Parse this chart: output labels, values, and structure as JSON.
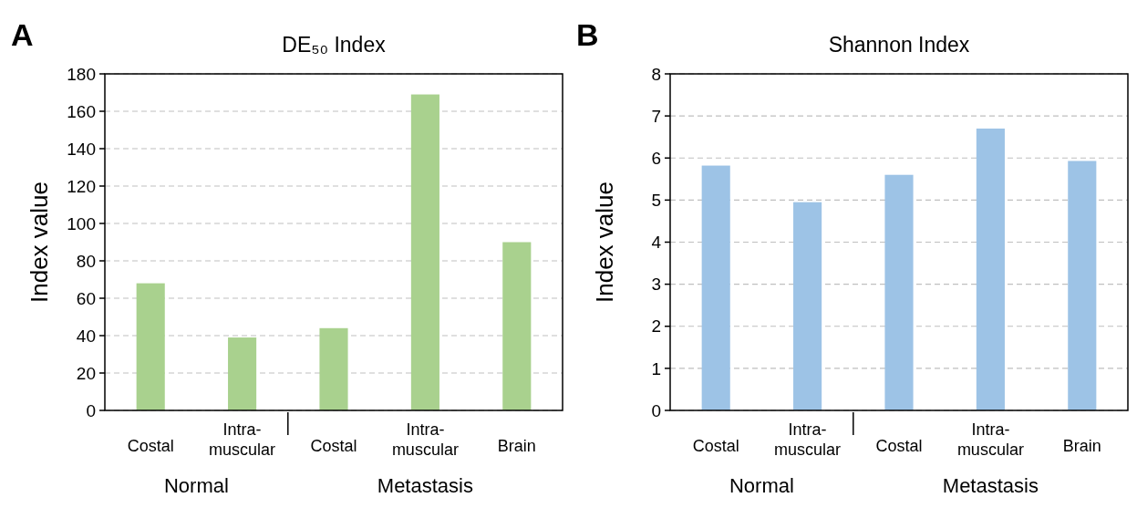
{
  "chart_data": [
    {
      "type": "bar",
      "title": "DE₅₀ Index",
      "ylabel": "Index value",
      "categories": [
        "Costal",
        "Intra-muscular",
        "Costal",
        "Intra-muscular",
        "Brain"
      ],
      "series": [
        {
          "color": "#a9d18e",
          "values": [
            68,
            39,
            44,
            169,
            90
          ]
        }
      ],
      "ylim": [
        0,
        180
      ],
      "yticks": [
        0,
        20,
        40,
        60,
        80,
        100,
        120,
        140,
        160,
        180
      ],
      "grid": "y",
      "annotations": [
        "A",
        "Normal",
        "Metastasis"
      ]
    },
    {
      "type": "bar",
      "title": "Shannon Index",
      "ylabel": "Index value",
      "categories": [
        "Costal",
        "Intra-muscular",
        "Costal",
        "Intra-muscular",
        "Brain"
      ],
      "series": [
        {
          "color": "#9dc3e6",
          "values": [
            5.82,
            4.95,
            5.6,
            6.7,
            5.93
          ]
        }
      ],
      "ylim": [
        0,
        8
      ],
      "yticks": [
        0,
        1,
        2,
        3,
        4,
        5,
        6,
        7,
        8
      ],
      "grid": "y",
      "annotations": [
        "B",
        "Normal",
        "Metastasis"
      ]
    }
  ]
}
